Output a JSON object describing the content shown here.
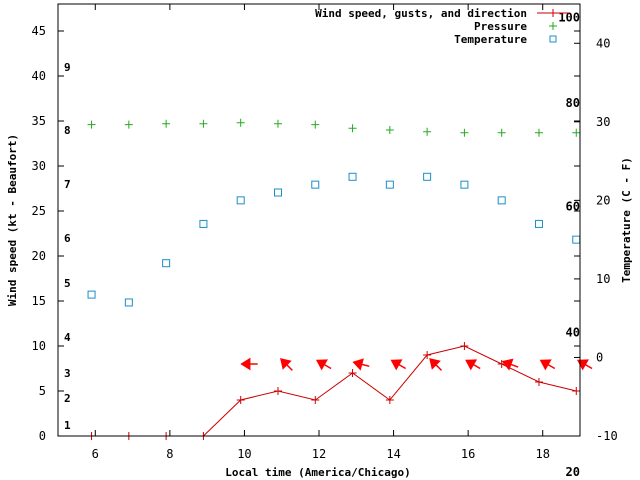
{
  "chart_data": {
    "type": "line",
    "xlabel": "Local time (America/Chicago)",
    "ylabel": "Wind speed (kt - Beaufort)",
    "y2label": "Temperature (C - F)",
    "xlim": [
      5,
      19
    ],
    "ylim": [
      0,
      48
    ],
    "y2lim": [
      -10,
      45
    ],
    "x_ticks": [
      6,
      8,
      10,
      12,
      14,
      16,
      18
    ],
    "y_ticks": [
      0,
      5,
      10,
      15,
      20,
      25,
      30,
      35,
      40,
      45
    ],
    "y2_ticks": [
      -10,
      0,
      10,
      20,
      30,
      40
    ],
    "fahrenheit_labels": [
      {
        "value": 20,
        "y": -4
      },
      {
        "value": 40,
        "y": 11.5
      },
      {
        "value": 60,
        "y": 25.5
      },
      {
        "value": 80,
        "y": 37
      },
      {
        "value": 100,
        "y": 46.5
      }
    ],
    "beaufort_labels": [
      {
        "value": 1,
        "y": 1.2
      },
      {
        "value": 2,
        "y": 4.2
      },
      {
        "value": 3,
        "y": 7
      },
      {
        "value": 4,
        "y": 11
      },
      {
        "value": 5,
        "y": 17
      },
      {
        "value": 6,
        "y": 22
      },
      {
        "value": 7,
        "y": 28
      },
      {
        "value": 8,
        "y": 34
      },
      {
        "value": 9,
        "y": 41
      }
    ],
    "series": [
      {
        "name": "Wind speed, gusts, and direction",
        "color": "#cc0000",
        "x": [
          5.9,
          6.9,
          7.9,
          8.9,
          9.9,
          10.9,
          11.9,
          12.9,
          13.9,
          14.9,
          15.9,
          16.9,
          17.9,
          18.9
        ],
        "values": [
          0,
          0,
          0,
          0,
          4,
          5,
          4,
          7,
          4,
          9,
          10,
          8,
          6,
          5
        ]
      },
      {
        "name": "Pressure",
        "color": "#22aa22",
        "x": [
          5.9,
          6.9,
          7.9,
          8.9,
          9.9,
          10.9,
          11.9,
          12.9,
          13.9,
          14.9,
          15.9,
          16.9,
          17.9,
          18.9
        ],
        "values": [
          34.6,
          34.6,
          34.7,
          34.7,
          34.8,
          34.7,
          34.6,
          34.2,
          34.0,
          33.8,
          33.7,
          33.7,
          33.7,
          33.7
        ]
      },
      {
        "name": "Temperature",
        "color": "#1a8fc9",
        "x": [
          5.9,
          6.9,
          7.9,
          8.9,
          9.9,
          10.9,
          11.9,
          12.9,
          13.9,
          14.9,
          15.9,
          16.9,
          17.9,
          18.9
        ],
        "values": [
          8,
          7,
          12,
          17,
          20,
          21,
          22,
          23,
          22,
          23,
          22,
          20,
          17,
          15
        ]
      }
    ],
    "wind_direction_deg": [
      null,
      null,
      null,
      null,
      90,
      135,
      120,
      105,
      120,
      135,
      120,
      110,
      120,
      120
    ],
    "legend": {
      "position": "top-right"
    }
  }
}
